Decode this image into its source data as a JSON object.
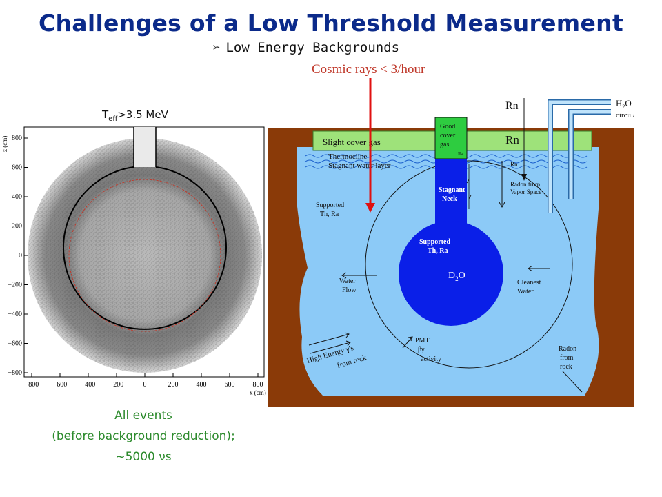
{
  "title": "Challenges of a Low Threshold Measurement",
  "bullet": "Low Energy Backgrounds",
  "cosmic_label": "Cosmic rays < 3/hour",
  "teff_label": {
    "base": "T",
    "sub": "eff",
    "rest": ">3.5 MeV"
  },
  "caption": {
    "line1": "All events",
    "line2": "(before background reduction);",
    "line3": "~5000 νs"
  },
  "plot": {
    "x_ticks": [
      "−800",
      "−600",
      "−400",
      "−200",
      "0",
      "200",
      "400",
      "600",
      "800"
    ],
    "y_ticks": [
      "800",
      "600",
      "400",
      "200",
      "0",
      "−200",
      "−400",
      "−600",
      "−800"
    ],
    "xlabel": "x (cm)",
    "ylabel": "z (cm)"
  },
  "diagram": {
    "rn_top": "Rn",
    "rn_cover": "Rn",
    "rn_small": "Rn",
    "h2o": "H",
    "h2o_sub": "2",
    "h2o_rest": "O",
    "circulation": "circulation",
    "cover_gas": "Slight cover gas",
    "thermocline": "Thermocline",
    "stagnant_layer": "Stagnant water layer",
    "good": "Good",
    "cover": "cover",
    "gas": "gas",
    "ra": "Ra",
    "stagnant": "Stagnant",
    "neck": "Neck",
    "supported_left_1": "Supported",
    "supported_left_2": "Th, Ra",
    "supported_center_1": "Supported",
    "supported_center_2": "Th, Ra",
    "d2o": "D",
    "d2o_sub": "2",
    "d2o_rest": "O",
    "water_flow_1": "Water",
    "water_flow_2": "Flow",
    "cleanest_1": "Cleanest",
    "cleanest_2": "Water",
    "radon_vapor_1": "Radon from",
    "radon_vapor_2": "Vapor Space",
    "high_energy_1": "High Energy γ's",
    "high_energy_2": "from rock",
    "pmt_1": "PMT",
    "pmt_2": "βγ",
    "pmt_3": "activity",
    "radon_rock_1": "Radon",
    "radon_rock_2": "from",
    "radon_rock_3": "rock"
  },
  "colors": {
    "title": "#0b2a8a",
    "caption": "#2c8a2c",
    "cosmic": "#c0392b",
    "rock": "#8a3a08",
    "water": "#8ccaf7",
    "d2o": "#0a1fe8",
    "cover_gas": "#9ee27a",
    "good_gas": "#2ecc40",
    "arrow": "#e01010"
  }
}
